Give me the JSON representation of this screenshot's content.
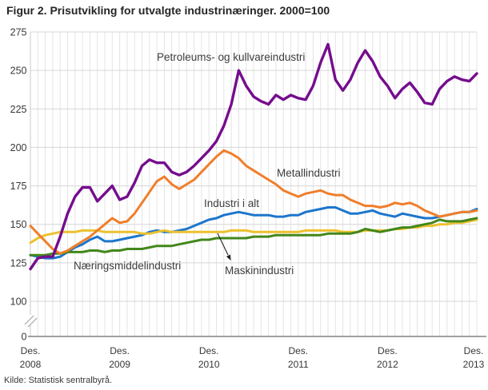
{
  "title": "Figur 2. Prisutvikling for utvalgte industrinæringer. 2000=100",
  "source": "Kilde: Statistisk sentralbyrå.",
  "chart_data": {
    "type": "line",
    "title": "Figur 2. Prisutvikling for utvalgte industrinæringer. 2000=100",
    "index_base": "2000=100",
    "frequency": "monthly",
    "x_start": "Des. 2008",
    "x_end": "Des. 2013",
    "x_tick_top": "Des.",
    "x_tick_years": [
      "2008",
      "2009",
      "2010",
      "2011",
      "2012",
      "2013"
    ],
    "y_ticks": [
      275,
      250,
      225,
      200,
      175,
      150,
      125,
      100,
      0
    ],
    "y_axis_break": true,
    "ylim_display": [
      100,
      275
    ],
    "grid": "both",
    "legend_position": "inline-labels",
    "colors": {
      "grid": "#e4e4e4",
      "axis": "#6b6b6b",
      "text": "#383838"
    },
    "series": [
      {
        "name": "Petroleums- og kullvareindustri",
        "color": "#750d8d",
        "values": [
          121,
          128,
          129,
          129,
          142,
          157,
          168,
          174,
          174,
          165,
          170,
          175,
          166,
          168,
          177,
          188,
          192,
          190,
          190,
          184,
          182,
          184,
          188,
          193,
          198,
          204,
          214,
          228,
          250,
          240,
          233,
          230,
          228,
          234,
          231,
          234,
          232,
          231,
          240,
          255,
          267,
          244,
          237,
          244,
          255,
          263,
          256,
          246,
          240,
          232,
          238,
          242,
          236,
          229,
          228,
          238,
          243,
          246,
          244,
          243,
          248
        ]
      },
      {
        "name": "Metallindustri",
        "color": "#f07e2b",
        "values": [
          149,
          144,
          139,
          134,
          131,
          133,
          136,
          139,
          142,
          146,
          150,
          154,
          151,
          152,
          157,
          164,
          171,
          178,
          181,
          176,
          173,
          176,
          179,
          184,
          189,
          194,
          198,
          196,
          193,
          188,
          185,
          182,
          179,
          176,
          172,
          170,
          168,
          170,
          171,
          172,
          170,
          169,
          169,
          166,
          164,
          162,
          162,
          161,
          162,
          164,
          163,
          164,
          162,
          159,
          157,
          155,
          156,
          157,
          158,
          158,
          159
        ]
      },
      {
        "name": "Industri i alt",
        "color": "#1d76cc",
        "values": [
          130,
          129,
          128,
          128,
          129,
          132,
          135,
          137,
          140,
          142,
          139,
          139,
          140,
          141,
          142,
          143,
          145,
          146,
          145,
          145,
          146,
          147,
          149,
          151,
          153,
          154,
          156,
          157,
          158,
          157,
          156,
          156,
          156,
          155,
          155,
          156,
          156,
          158,
          159,
          160,
          161,
          161,
          159,
          157,
          157,
          158,
          159,
          157,
          156,
          155,
          157,
          156,
          155,
          154,
          154,
          155,
          156,
          157,
          158,
          158,
          160
        ]
      },
      {
        "name": "Næringsmiddelindustri",
        "color": "#43871c",
        "values": [
          130,
          130,
          130,
          131,
          131,
          132,
          132,
          132,
          133,
          133,
          132,
          133,
          133,
          134,
          134,
          134,
          135,
          136,
          136,
          136,
          137,
          138,
          139,
          140,
          140,
          141,
          141,
          141,
          141,
          141,
          142,
          142,
          142,
          143,
          143,
          143,
          143,
          143,
          143,
          143,
          144,
          144,
          144,
          144,
          145,
          147,
          146,
          145,
          146,
          147,
          148,
          148,
          149,
          150,
          151,
          153,
          152,
          152,
          152,
          153,
          154
        ]
      },
      {
        "name": "Maskinindustri",
        "color": "#ecc12f",
        "values": [
          138,
          141,
          143,
          144,
          145,
          145,
          145,
          146,
          146,
          146,
          145,
          145,
          145,
          145,
          145,
          144,
          144,
          145,
          146,
          145,
          145,
          145,
          145,
          145,
          145,
          145,
          145,
          146,
          146,
          146,
          145,
          145,
          145,
          145,
          145,
          145,
          145,
          146,
          146,
          146,
          146,
          146,
          145,
          145,
          145,
          146,
          146,
          146,
          146,
          147,
          147,
          148,
          148,
          149,
          149,
          150,
          150,
          151,
          151,
          152,
          153
        ]
      }
    ]
  }
}
